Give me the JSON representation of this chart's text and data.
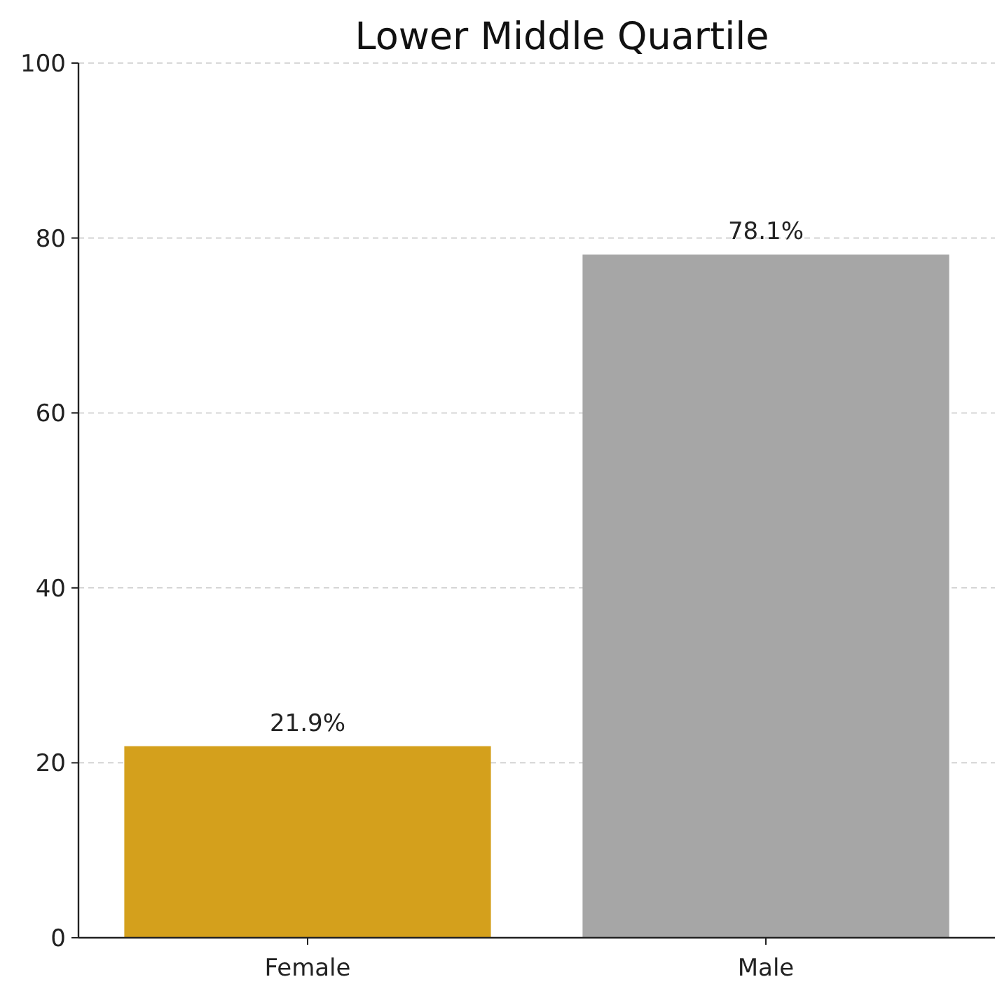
{
  "chart_data": {
    "type": "bar",
    "title": "Lower Middle Quartile",
    "categories": [
      "Female",
      "Male"
    ],
    "values": [
      21.9,
      78.1
    ],
    "colors": [
      "#d4a01c",
      "#a6a6a6"
    ],
    "value_labels": [
      "21.9%",
      "78.1%"
    ],
    "ylim": [
      0,
      100
    ],
    "yticks": [
      0,
      20,
      40,
      60,
      80,
      100
    ],
    "grid": "y"
  }
}
